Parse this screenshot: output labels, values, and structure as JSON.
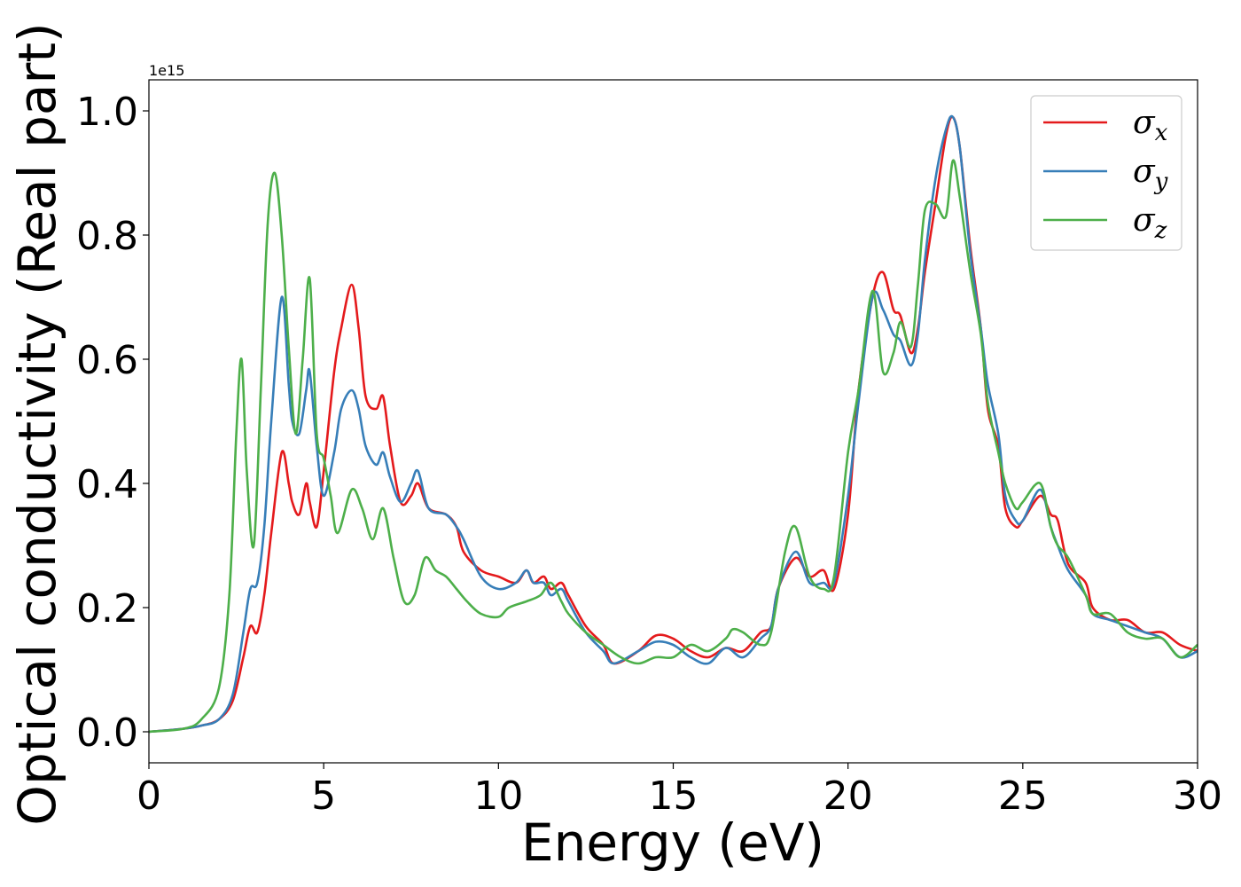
{
  "chart_data": {
    "type": "line",
    "xlabel": "Energy (eV)",
    "ylabel": "Optical conductivity (Real part)",
    "y_offset_text": "1e15",
    "xlim": [
      0,
      30
    ],
    "ylim": [
      -0.05,
      1.05
    ],
    "y_multiplier": 1000000000000000.0,
    "x_ticks": [
      0,
      5,
      10,
      15,
      20,
      25,
      30
    ],
    "x_tick_labels": [
      "0",
      "5",
      "10",
      "15",
      "20",
      "25",
      "30"
    ],
    "y_ticks": [
      0.0,
      0.2,
      0.4,
      0.6,
      0.8,
      1.0
    ],
    "y_tick_labels": [
      "0.0",
      "0.2",
      "0.4",
      "0.6",
      "0.8",
      "1.0"
    ],
    "grid": false,
    "legend_position": "top-right",
    "series": [
      {
        "name": "σx",
        "symbol": "σ",
        "subscript": "x",
        "color": "#e41a1c",
        "x": [
          0,
          1,
          1.5,
          2,
          2.4,
          2.7,
          2.9,
          3.1,
          3.3,
          3.5,
          3.8,
          4,
          4.1,
          4.3,
          4.5,
          4.6,
          4.8,
          5,
          5.3,
          5.5,
          5.8,
          6,
          6.2,
          6.5,
          6.7,
          6.9,
          7.2,
          7.5,
          7.7,
          8,
          8.5,
          8.8,
          9,
          9.5,
          10,
          10.5,
          10.8,
          11,
          11.3,
          11.5,
          11.8,
          12,
          12.5,
          13,
          13.3,
          14,
          14.5,
          15,
          15.5,
          16,
          16.5,
          17,
          17.5,
          17.8,
          18,
          18.5,
          18.9,
          19.3,
          19.6,
          20,
          20.3,
          20.7,
          21,
          21.3,
          21.5,
          21.8,
          22,
          22.2,
          22.5,
          22.8,
          23,
          23.2,
          23.5,
          23.8,
          24,
          24.3,
          24.5,
          24.8,
          25,
          25.5,
          25.8,
          26,
          26.3,
          26.8,
          27,
          27.5,
          28,
          28.5,
          29,
          29.5,
          30
        ],
        "y": [
          0,
          0.005,
          0.01,
          0.02,
          0.05,
          0.12,
          0.17,
          0.16,
          0.22,
          0.32,
          0.45,
          0.4,
          0.37,
          0.35,
          0.4,
          0.37,
          0.33,
          0.42,
          0.58,
          0.65,
          0.72,
          0.65,
          0.54,
          0.52,
          0.54,
          0.46,
          0.37,
          0.38,
          0.4,
          0.36,
          0.35,
          0.33,
          0.29,
          0.26,
          0.25,
          0.24,
          0.26,
          0.24,
          0.25,
          0.23,
          0.24,
          0.22,
          0.17,
          0.14,
          0.11,
          0.13,
          0.155,
          0.15,
          0.13,
          0.12,
          0.135,
          0.13,
          0.16,
          0.17,
          0.23,
          0.28,
          0.25,
          0.26,
          0.23,
          0.35,
          0.55,
          0.7,
          0.74,
          0.68,
          0.67,
          0.61,
          0.65,
          0.74,
          0.85,
          0.96,
          0.99,
          0.94,
          0.78,
          0.65,
          0.52,
          0.46,
          0.36,
          0.33,
          0.34,
          0.38,
          0.35,
          0.34,
          0.27,
          0.24,
          0.2,
          0.18,
          0.18,
          0.16,
          0.16,
          0.14,
          0.13
        ]
      },
      {
        "name": "σy",
        "symbol": "σ",
        "subscript": "y",
        "color": "#377eb8",
        "x": [
          0,
          1,
          1.5,
          2,
          2.4,
          2.7,
          2.9,
          3.1,
          3.3,
          3.5,
          3.8,
          4,
          4.1,
          4.3,
          4.5,
          4.6,
          4.8,
          5,
          5.3,
          5.5,
          5.8,
          6,
          6.2,
          6.5,
          6.7,
          6.9,
          7.2,
          7.5,
          7.7,
          8,
          8.5,
          8.8,
          9,
          9.5,
          10,
          10.5,
          10.8,
          11,
          11.3,
          11.5,
          11.8,
          12,
          12.5,
          13,
          13.3,
          14,
          14.5,
          15,
          15.5,
          16,
          16.5,
          17,
          17.5,
          17.8,
          18,
          18.5,
          18.9,
          19.3,
          19.6,
          20,
          20.3,
          20.7,
          21,
          21.3,
          21.5,
          21.8,
          22,
          22.2,
          22.5,
          22.8,
          23,
          23.2,
          23.5,
          23.8,
          24,
          24.3,
          24.5,
          24.8,
          25,
          25.5,
          25.8,
          26,
          26.3,
          26.8,
          27,
          27.5,
          28,
          28.5,
          29,
          29.5,
          30
        ],
        "y": [
          0,
          0.005,
          0.01,
          0.02,
          0.06,
          0.16,
          0.23,
          0.24,
          0.33,
          0.5,
          0.7,
          0.56,
          0.5,
          0.48,
          0.55,
          0.58,
          0.46,
          0.38,
          0.45,
          0.52,
          0.55,
          0.52,
          0.46,
          0.43,
          0.45,
          0.41,
          0.37,
          0.4,
          0.42,
          0.36,
          0.35,
          0.33,
          0.31,
          0.25,
          0.23,
          0.24,
          0.26,
          0.24,
          0.24,
          0.22,
          0.23,
          0.21,
          0.16,
          0.13,
          0.11,
          0.13,
          0.145,
          0.14,
          0.12,
          0.11,
          0.135,
          0.12,
          0.15,
          0.17,
          0.23,
          0.29,
          0.24,
          0.24,
          0.24,
          0.38,
          0.53,
          0.7,
          0.68,
          0.64,
          0.63,
          0.59,
          0.64,
          0.76,
          0.89,
          0.97,
          0.99,
          0.94,
          0.77,
          0.65,
          0.56,
          0.48,
          0.38,
          0.34,
          0.34,
          0.39,
          0.33,
          0.3,
          0.26,
          0.22,
          0.19,
          0.18,
          0.17,
          0.16,
          0.15,
          0.12,
          0.13
        ]
      },
      {
        "name": "σz",
        "symbol": "σ",
        "subscript": "z",
        "color": "#4daf4a",
        "x": [
          0,
          1,
          1.5,
          2,
          2.3,
          2.5,
          2.65,
          2.8,
          3.0,
          3.2,
          3.4,
          3.6,
          3.8,
          4.0,
          4.2,
          4.4,
          4.6,
          4.8,
          5.0,
          5.2,
          5.4,
          5.8,
          6.1,
          6.4,
          6.7,
          7.0,
          7.3,
          7.6,
          7.9,
          8.2,
          8.5,
          8.8,
          9.1,
          9.5,
          10,
          10.3,
          10.8,
          11.2,
          11.5,
          11.8,
          12,
          12.5,
          13,
          13.5,
          14,
          14.5,
          15,
          15.5,
          16,
          16.5,
          16.7,
          17,
          17.5,
          17.8,
          18.2,
          18.5,
          18.9,
          19.3,
          19.6,
          20,
          20.3,
          20.7,
          21,
          21.3,
          21.5,
          21.8,
          22,
          22.2,
          22.5,
          22.8,
          23,
          23.2,
          23.5,
          23.8,
          24,
          24.3,
          24.5,
          24.8,
          25,
          25.5,
          25.8,
          26,
          26.3,
          26.8,
          27,
          27.5,
          28,
          28.5,
          29,
          29.5,
          30
        ],
        "y": [
          0,
          0.005,
          0.02,
          0.07,
          0.22,
          0.48,
          0.6,
          0.42,
          0.3,
          0.55,
          0.82,
          0.9,
          0.8,
          0.62,
          0.48,
          0.6,
          0.73,
          0.48,
          0.44,
          0.38,
          0.32,
          0.39,
          0.36,
          0.31,
          0.36,
          0.28,
          0.21,
          0.22,
          0.28,
          0.26,
          0.25,
          0.23,
          0.21,
          0.19,
          0.185,
          0.2,
          0.21,
          0.22,
          0.24,
          0.21,
          0.19,
          0.16,
          0.14,
          0.12,
          0.11,
          0.12,
          0.12,
          0.14,
          0.13,
          0.15,
          0.165,
          0.16,
          0.14,
          0.16,
          0.29,
          0.33,
          0.25,
          0.23,
          0.25,
          0.45,
          0.55,
          0.71,
          0.58,
          0.61,
          0.66,
          0.62,
          0.72,
          0.84,
          0.85,
          0.83,
          0.92,
          0.86,
          0.74,
          0.64,
          0.53,
          0.45,
          0.4,
          0.36,
          0.37,
          0.4,
          0.33,
          0.3,
          0.28,
          0.22,
          0.19,
          0.19,
          0.16,
          0.15,
          0.15,
          0.12,
          0.14
        ]
      }
    ]
  }
}
